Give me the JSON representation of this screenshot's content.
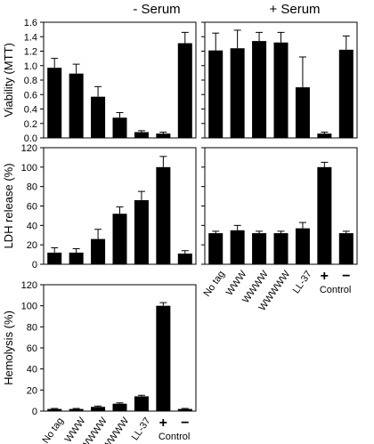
{
  "figure": {
    "headers": {
      "left": "- Serum",
      "right": "+ Serum"
    },
    "control_group_label": "Control"
  },
  "chart_data": [
    {
      "id": "viability-minus-serum",
      "type": "bar",
      "column": "- Serum",
      "ylabel": "Viability (MTT)",
      "ylim": [
        0,
        1.6
      ],
      "yticks": [
        0,
        0.2,
        0.4,
        0.6,
        0.8,
        1.0,
        1.2,
        1.4,
        1.6
      ],
      "ytick_labels": [
        "0.0",
        "0.2",
        "0.4",
        "0.6",
        "0.8",
        "1.0",
        "1.2",
        "1.4",
        "1.6"
      ],
      "categories": [
        "No tag",
        "WWW",
        "WWWW",
        "WWWWW",
        "LL-37",
        "+",
        "−"
      ],
      "values": [
        0.97,
        0.89,
        0.57,
        0.28,
        0.08,
        0.06,
        1.31
      ],
      "errors": [
        0.13,
        0.13,
        0.14,
        0.07,
        0.02,
        0.02,
        0.15
      ],
      "show_xticklabels": false
    },
    {
      "id": "viability-plus-serum",
      "type": "bar",
      "column": "+ Serum",
      "ylim": [
        0,
        1.6
      ],
      "yticks": [
        0,
        0.2,
        0.4,
        0.6,
        0.8,
        1.0,
        1.2,
        1.4,
        1.6
      ],
      "categories": [
        "No tag",
        "WWW",
        "WWWW",
        "WWWWW",
        "LL-37",
        "+",
        "−"
      ],
      "values": [
        1.21,
        1.24,
        1.34,
        1.32,
        0.7,
        0.06,
        1.22
      ],
      "errors": [
        0.24,
        0.25,
        0.12,
        0.14,
        0.42,
        0.02,
        0.19
      ],
      "show_xticklabels": false
    },
    {
      "id": "ldh-minus-serum",
      "type": "bar",
      "column": "- Serum",
      "ylabel": "LDH release (%)",
      "ylim": [
        0,
        120
      ],
      "yticks": [
        0,
        20,
        40,
        60,
        80,
        100,
        120
      ],
      "ytick_labels": [
        "0",
        "20",
        "40",
        "60",
        "80",
        "100",
        "120"
      ],
      "categories": [
        "No tag",
        "WWW",
        "WWWW",
        "WWWWW",
        "LL-37",
        "+",
        "−"
      ],
      "values": [
        12,
        12,
        26,
        52,
        66,
        100,
        11
      ],
      "errors": [
        5,
        4,
        10,
        7,
        9,
        11,
        3
      ],
      "show_xticklabels": false
    },
    {
      "id": "ldh-plus-serum",
      "type": "bar",
      "column": "+ Serum",
      "ylim": [
        0,
        120
      ],
      "yticks": [
        0,
        20,
        40,
        60,
        80,
        100,
        120
      ],
      "categories": [
        "No tag",
        "WWW",
        "WWWW",
        "WWWWW",
        "LL-37",
        "+",
        "−"
      ],
      "values": [
        32,
        35,
        32,
        32,
        37,
        100,
        32
      ],
      "errors": [
        2,
        5,
        2,
        2,
        6,
        5,
        2
      ],
      "show_xticklabels": true
    },
    {
      "id": "hemolysis-minus-serum",
      "type": "bar",
      "column": "- Serum",
      "ylabel": "Hemolysis (%)",
      "ylim": [
        0,
        120
      ],
      "yticks": [
        0,
        20,
        40,
        60,
        80,
        100,
        120
      ],
      "ytick_labels": [
        "0",
        "20",
        "40",
        "60",
        "80",
        "100",
        "120"
      ],
      "categories": [
        "No tag",
        "WWW",
        "WWWW",
        "WWWWW",
        "LL-37",
        "+",
        "−"
      ],
      "values": [
        2,
        2,
        4,
        7,
        14,
        100,
        2
      ],
      "errors": [
        0.5,
        0.5,
        0.8,
        0.8,
        1,
        3,
        0.5
      ],
      "show_xticklabels": true
    }
  ]
}
